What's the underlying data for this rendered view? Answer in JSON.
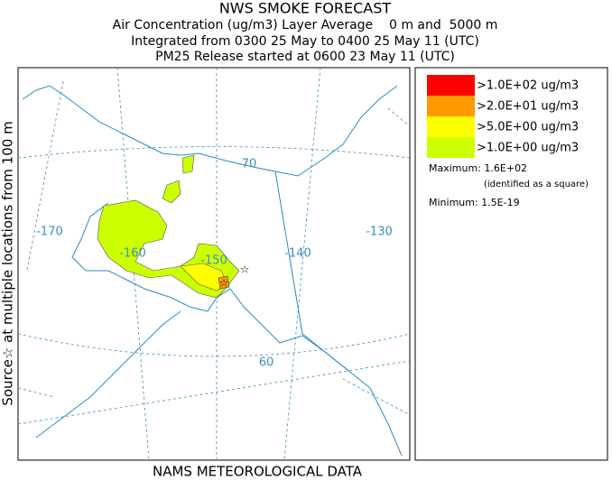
{
  "header": {
    "title": "NWS SMOKE FORECAST",
    "lines": [
      "Air Concentration (ug/m3) Layer Average    0 m and  5000 m",
      "Integrated from 0300 25 May to 0400 25 May 11 (UTC)",
      "PM25 Release started at 0600 23 May 11 (UTC)"
    ]
  },
  "side_label": "Source☆ at multiple locations from 100 m",
  "footer": "NAMS METEOROLOGICAL DATA",
  "map": {
    "graticule_labels": [
      "-170",
      "-160",
      "-150",
      "-140",
      "-130",
      "70",
      "60"
    ]
  },
  "legend": {
    "entries": [
      {
        "label": ">1.0E+02 ug/m3",
        "color": "#ff0000"
      },
      {
        "label": ">2.0E+01 ug/m3",
        "color": "#ff9900"
      },
      {
        "label": ">5.0E+00 ug/m3",
        "color": "#ffff00"
      },
      {
        "label": ">1.0E+00 ug/m3",
        "color": "#ccff00"
      }
    ],
    "maximum": "Maximum: 1.6E+02",
    "max_note": "(identified as a square)",
    "minimum": "Minimum: 1.5E-19"
  }
}
